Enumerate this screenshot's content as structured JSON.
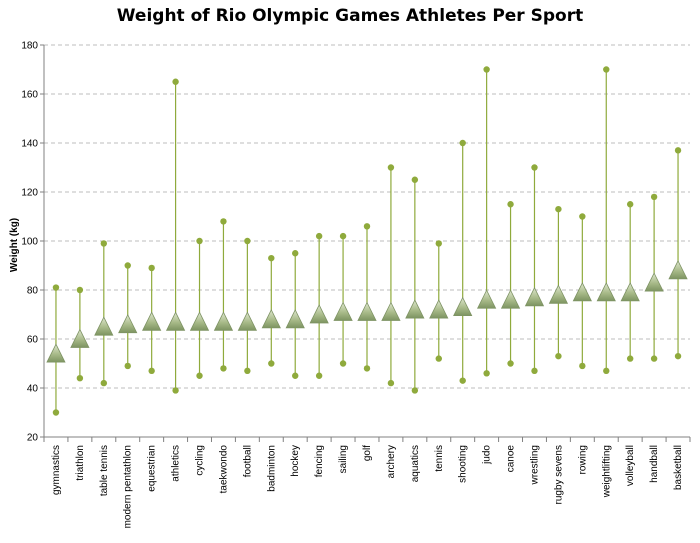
{
  "chart_data": {
    "type": "line",
    "title": "Weight of Rio Olympic Games Athletes Per Sport",
    "ylabel": "Weight (kg)",
    "xlabel": "",
    "ylim": [
      20,
      180
    ],
    "yticks": [
      20,
      40,
      60,
      80,
      100,
      120,
      140,
      160,
      180
    ],
    "grid": true,
    "categories": [
      "gymnastics",
      "triathlon",
      "table tennis",
      "modern pentathlon",
      "equestrian",
      "athletics",
      "cycling",
      "taekwondo",
      "football",
      "badminton",
      "hockey",
      "fencing",
      "sailing",
      "golf",
      "archery",
      "aquatics",
      "tennis",
      "shooting",
      "judo",
      "canoe",
      "wrestling",
      "rugby sevens",
      "rowing",
      "weightlifting",
      "volleyball",
      "handball",
      "basketball"
    ],
    "series": [
      {
        "name": "",
        "marker": "triangle",
        "values": [
          53,
          59,
          64,
          65,
          66,
          66,
          66,
          66,
          66,
          67,
          67,
          69,
          70,
          70,
          70,
          71,
          71,
          72,
          75,
          75,
          76,
          77,
          78,
          78,
          78,
          82,
          87
        ]
      },
      {
        "name": "",
        "marker": "circle",
        "values": [
          81,
          80,
          99,
          90,
          89,
          165,
          100,
          108,
          100,
          93,
          95,
          102,
          102,
          106,
          130,
          125,
          99,
          140,
          170,
          115,
          130,
          113,
          110,
          170,
          115,
          118,
          137
        ]
      },
      {
        "name": "",
        "marker": "circle",
        "values": [
          30,
          44,
          42,
          49,
          47,
          39,
          45,
          48,
          47,
          50,
          45,
          45,
          50,
          48,
          42,
          39,
          52,
          43,
          46,
          50,
          47,
          53,
          49,
          47,
          52,
          52,
          53
        ]
      }
    ],
    "colors": {
      "line": "#8faa3c",
      "dot": "#8faa3c",
      "triangle": "#a7b98a",
      "grid": "#a6a6a6"
    }
  }
}
